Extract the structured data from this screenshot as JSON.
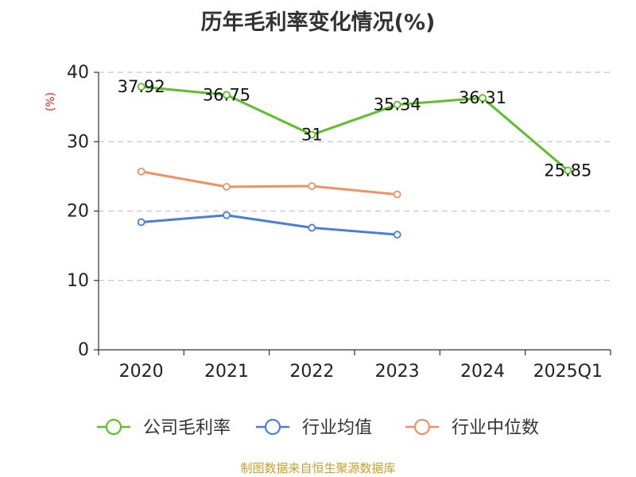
{
  "title": "历年毛利率变化情况(%)",
  "source": "制图数据来自恒生聚源数据库",
  "chart_data": {
    "type": "line",
    "title": "历年毛利率变化情况(%)",
    "ylabel": "(%)",
    "xlabel": "",
    "ylim": [
      0,
      40
    ],
    "yticks": [
      0,
      10,
      20,
      30,
      40
    ],
    "grid": true,
    "legend_position": "bottom",
    "categories": [
      "2020",
      "2021",
      "2022",
      "2023",
      "2024",
      "2025Q1"
    ],
    "series": [
      {
        "name": "公司毛利率",
        "color": "#5cc02a",
        "values": [
          37.92,
          36.75,
          31,
          35.34,
          36.31,
          25.85
        ],
        "labels": [
          "37.92",
          "36.75",
          "31",
          "35.34",
          "36.31",
          "25.85"
        ]
      },
      {
        "name": "行业均值",
        "color": "#4a7fd8",
        "values": [
          18.4,
          19.4,
          17.6,
          16.6,
          null,
          null
        ]
      },
      {
        "name": "行业中位数",
        "color": "#f39060",
        "values": [
          25.7,
          23.5,
          23.6,
          22.4,
          null,
          null
        ]
      }
    ]
  }
}
